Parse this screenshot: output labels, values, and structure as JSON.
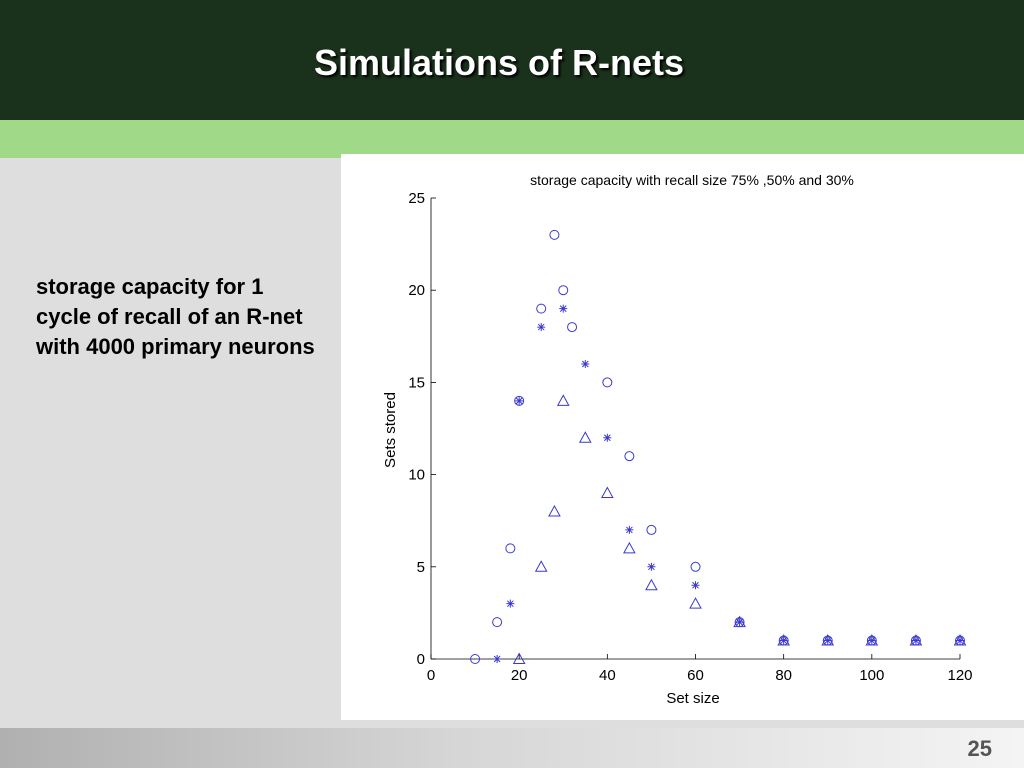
{
  "slide": {
    "title": "Simulations of R-nets",
    "caption": "storage capacity for 1 cycle of recall of an R-net with 4000 primary neurons",
    "page_number": "25",
    "colors": {
      "header": "#1a311b",
      "band": "#a0da88",
      "panel": "#dedede",
      "marker": "#3a3ad0"
    }
  },
  "chart_data": {
    "type": "scatter",
    "title": "storage capacity with recall size 75% ,50% and 30%",
    "xlabel": "Set size",
    "ylabel": "Sets stored",
    "xlim": [
      0,
      120
    ],
    "ylim": [
      0,
      25
    ],
    "xticks": [
      0,
      20,
      40,
      60,
      80,
      100,
      120
    ],
    "yticks": [
      0,
      5,
      10,
      15,
      20,
      25
    ],
    "grid": false,
    "series": [
      {
        "marker": "circle",
        "points": [
          [
            10,
            0
          ],
          [
            15,
            2
          ],
          [
            18,
            6
          ],
          [
            20,
            14
          ],
          [
            25,
            19
          ],
          [
            28,
            23
          ],
          [
            30,
            20
          ],
          [
            32,
            18
          ],
          [
            40,
            15
          ],
          [
            45,
            11
          ],
          [
            50,
            7
          ],
          [
            60,
            5
          ],
          [
            70,
            2
          ],
          [
            80,
            1
          ],
          [
            90,
            1
          ],
          [
            100,
            1
          ],
          [
            110,
            1
          ],
          [
            120,
            1
          ]
        ]
      },
      {
        "marker": "star",
        "points": [
          [
            15,
            0
          ],
          [
            18,
            3
          ],
          [
            20,
            14
          ],
          [
            25,
            18
          ],
          [
            30,
            19
          ],
          [
            35,
            16
          ],
          [
            40,
            12
          ],
          [
            45,
            7
          ],
          [
            50,
            5
          ],
          [
            60,
            4
          ],
          [
            70,
            2
          ],
          [
            80,
            1
          ],
          [
            90,
            1
          ],
          [
            100,
            1
          ],
          [
            110,
            1
          ],
          [
            120,
            1
          ]
        ]
      },
      {
        "marker": "triangle",
        "points": [
          [
            20,
            0
          ],
          [
            25,
            5
          ],
          [
            28,
            8
          ],
          [
            30,
            14
          ],
          [
            35,
            12
          ],
          [
            40,
            9
          ],
          [
            45,
            6
          ],
          [
            50,
            4
          ],
          [
            60,
            3
          ],
          [
            70,
            2
          ],
          [
            80,
            1
          ],
          [
            90,
            1
          ],
          [
            100,
            1
          ],
          [
            110,
            1
          ],
          [
            120,
            1
          ]
        ]
      }
    ]
  }
}
